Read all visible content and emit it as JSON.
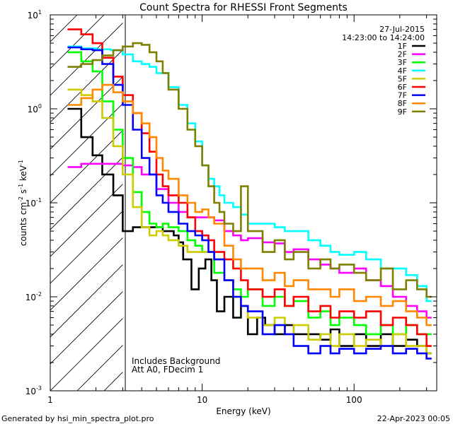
{
  "chart_data": {
    "type": "line",
    "title": "Count Spectra for RHESSI Front Segments",
    "xlabel": "Energy (keV)",
    "ylabel_base": "counts cm",
    "ylabel_exp1": "-2",
    "ylabel_mid": " s",
    "ylabel_exp2": "-1",
    "ylabel_end": " keV",
    "ylabel_exp3": "-1",
    "x_scale": "log",
    "y_scale": "log",
    "xlim": [
      1,
      350
    ],
    "ylim": [
      0.001,
      10
    ],
    "x_ticks": [
      {
        "value": 1,
        "label": "1"
      },
      {
        "value": 10,
        "label": "10"
      },
      {
        "value": 100,
        "label": "100"
      }
    ],
    "y_ticks": [
      {
        "value": 10,
        "base": "10",
        "exp": "1"
      },
      {
        "value": 1,
        "base": "10",
        "exp": "0"
      },
      {
        "value": 0.1,
        "base": "10",
        "exp": "-1"
      },
      {
        "value": 0.01,
        "base": "10",
        "exp": "-2"
      },
      {
        "value": 0.001,
        "base": "10",
        "exp": "-3"
      }
    ],
    "excluded_region": {
      "from": 1,
      "to": 3,
      "pattern": "hatched"
    },
    "date": "27-Jul-2015",
    "time_range": "14:23:00 to 14:24:00",
    "annotations": [
      "Includes Background",
      "Att A0, FDecim 1"
    ],
    "footer_left": "Generated by hsi_min_spectra_plot.pro",
    "footer_right": "22-Apr-2023 00:05",
    "series": [
      {
        "name": "1F",
        "color": "#000000",
        "x": [
          1.3,
          1.6,
          1.9,
          2.2,
          2.6,
          3.0,
          3.5,
          4.5,
          5.5,
          6.5,
          7.0,
          7.5,
          8.5,
          9.5,
          10.5,
          11.5,
          12.5,
          14,
          16,
          18,
          20,
          23,
          26,
          30,
          35,
          40,
          50,
          60,
          70,
          80,
          100,
          120,
          150,
          180,
          220,
          260,
          300
        ],
        "values": [
          1.0,
          0.5,
          0.32,
          0.2,
          0.12,
          0.05,
          0.055,
          0.055,
          0.05,
          0.045,
          0.038,
          0.025,
          0.012,
          0.02,
          0.025,
          0.015,
          0.007,
          0.01,
          0.006,
          0.008,
          0.004,
          0.006,
          0.005,
          0.004,
          0.005,
          0.004,
          0.004,
          0.0035,
          0.0045,
          0.003,
          0.004,
          0.003,
          0.004,
          0.003,
          0.0035,
          0.003,
          0.0025
        ]
      },
      {
        "name": "2F",
        "color": "#ff00ff",
        "x": [
          1.3,
          1.6,
          2.0,
          2.5,
          3.0,
          3.5,
          4.0,
          5.0,
          6.0,
          7.0,
          8.0,
          9.0,
          10,
          12,
          14,
          16,
          18,
          20,
          25,
          30,
          35,
          40,
          50,
          60,
          70,
          80,
          100,
          120,
          150,
          180,
          220,
          260,
          300
        ],
        "values": [
          0.24,
          0.26,
          0.26,
          0.26,
          0.25,
          0.24,
          0.2,
          0.14,
          0.1,
          0.08,
          0.07,
          0.07,
          0.07,
          0.065,
          0.05,
          0.045,
          0.04,
          0.042,
          0.038,
          0.037,
          0.03,
          0.032,
          0.025,
          0.022,
          0.02,
          0.018,
          0.02,
          0.015,
          0.013,
          0.01,
          0.008,
          0.007,
          0.006
        ]
      },
      {
        "name": "3F",
        "color": "#00ff00",
        "x": [
          1.3,
          1.6,
          1.9,
          2.2,
          2.6,
          3.0,
          3.5,
          4.0,
          4.5,
          5.0,
          5.5,
          6.0,
          7.0,
          8.0,
          9.0,
          10,
          12,
          14,
          16,
          18,
          20,
          25,
          30,
          35,
          40,
          50,
          60,
          70,
          80,
          100,
          120,
          150,
          180,
          220,
          260,
          300
        ],
        "values": [
          4.0,
          3.2,
          2.5,
          1.2,
          0.6,
          0.3,
          0.13,
          0.08,
          0.06,
          0.055,
          0.06,
          0.055,
          0.05,
          0.04,
          0.035,
          0.03,
          0.018,
          0.015,
          0.012,
          0.01,
          0.012,
          0.008,
          0.01,
          0.008,
          0.009,
          0.006,
          0.007,
          0.005,
          0.006,
          0.005,
          0.004,
          0.005,
          0.004,
          0.005,
          0.004,
          0.004
        ]
      },
      {
        "name": "4F",
        "color": "#00ffff",
        "x": [
          1.3,
          1.6,
          2.0,
          2.5,
          3.0,
          3.5,
          4.0,
          4.5,
          5.0,
          6.0,
          7.0,
          8.0,
          9.0,
          10,
          11,
          12,
          13,
          14,
          16,
          18,
          20,
          25,
          30,
          35,
          40,
          50,
          60,
          70,
          80,
          100,
          120,
          150,
          180,
          220,
          260,
          300
        ],
        "values": [
          4.6,
          4.4,
          4.3,
          4.2,
          3.8,
          3.2,
          3.0,
          2.8,
          2.4,
          1.7,
          1.1,
          0.7,
          0.45,
          0.25,
          0.18,
          0.15,
          0.12,
          0.1,
          0.09,
          0.075,
          0.06,
          0.06,
          0.055,
          0.05,
          0.05,
          0.04,
          0.035,
          0.03,
          0.028,
          0.03,
          0.025,
          0.02,
          0.02,
          0.017,
          0.013,
          0.009
        ]
      },
      {
        "name": "5F",
        "color": "#cccc00",
        "x": [
          1.3,
          1.6,
          1.9,
          2.2,
          2.6,
          3.0,
          3.5,
          4.0,
          4.5,
          5.0,
          5.5,
          6.0,
          7.0,
          8.0,
          9.0,
          10,
          12,
          14,
          16,
          18,
          20,
          25,
          30,
          35,
          40,
          50,
          60,
          70,
          80,
          100,
          120,
          150,
          180,
          220,
          260,
          300
        ],
        "values": [
          1.6,
          1.4,
          1.2,
          0.8,
          0.4,
          0.2,
          0.09,
          0.055,
          0.045,
          0.05,
          0.045,
          0.04,
          0.035,
          0.03,
          0.03,
          0.03,
          0.025,
          0.015,
          0.01,
          0.008,
          0.006,
          0.005,
          0.006,
          0.004,
          0.005,
          0.0035,
          0.004,
          0.003,
          0.004,
          0.003,
          0.0035,
          0.003,
          0.004,
          0.003,
          0.003,
          0.0025
        ]
      },
      {
        "name": "6F",
        "color": "#ff0000",
        "x": [
          1.3,
          1.6,
          1.9,
          2.2,
          2.6,
          3.0,
          3.5,
          4.0,
          4.5,
          5.0,
          5.5,
          6.0,
          7.0,
          8.0,
          9.0,
          10,
          11,
          12,
          14,
          16,
          18,
          20,
          25,
          30,
          35,
          40,
          50,
          60,
          70,
          80,
          100,
          120,
          150,
          180,
          220,
          260,
          300
        ],
        "values": [
          7.0,
          6.2,
          5.0,
          3.5,
          2.2,
          1.4,
          0.9,
          0.55,
          0.35,
          0.2,
          0.15,
          0.12,
          0.1,
          0.07,
          0.05,
          0.045,
          0.04,
          0.03,
          0.025,
          0.02,
          0.015,
          0.012,
          0.01,
          0.012,
          0.008,
          0.01,
          0.007,
          0.008,
          0.006,
          0.007,
          0.006,
          0.007,
          0.005,
          0.006,
          0.005,
          0.004,
          0.003
        ]
      },
      {
        "name": "7F",
        "color": "#0000ff",
        "x": [
          1.3,
          1.6,
          1.9,
          2.2,
          2.6,
          3.0,
          3.5,
          4.0,
          4.5,
          5.0,
          5.5,
          6.0,
          7.0,
          8.0,
          9.0,
          10,
          11,
          12,
          14,
          16,
          18,
          20,
          25,
          30,
          35,
          40,
          50,
          60,
          70,
          80,
          100,
          120,
          150,
          180,
          220,
          260,
          300
        ],
        "values": [
          4.5,
          4.3,
          4.2,
          3.0,
          1.8,
          1.1,
          0.6,
          0.3,
          0.2,
          0.12,
          0.1,
          0.08,
          0.06,
          0.05,
          0.045,
          0.04,
          0.03,
          0.025,
          0.015,
          0.01,
          0.008,
          0.007,
          0.004,
          0.005,
          0.004,
          0.003,
          0.0025,
          0.003,
          0.0025,
          0.0028,
          0.0025,
          0.0028,
          0.003,
          0.0025,
          0.0028,
          0.0025,
          0.0022
        ]
      },
      {
        "name": "8F",
        "color": "#ff8800",
        "x": [
          1.3,
          1.6,
          1.9,
          2.2,
          2.6,
          3.0,
          3.5,
          4.0,
          4.5,
          5.0,
          5.5,
          6.0,
          7.0,
          8.0,
          9.0,
          10,
          11,
          12,
          14,
          16,
          18,
          20,
          25,
          30,
          35,
          40,
          50,
          60,
          70,
          80,
          100,
          120,
          150,
          180,
          220,
          260,
          300
        ],
        "values": [
          1.1,
          1.3,
          1.6,
          1.8,
          1.5,
          1.2,
          0.9,
          0.7,
          0.5,
          0.3,
          0.22,
          0.18,
          0.12,
          0.1,
          0.08,
          0.085,
          0.07,
          0.06,
          0.035,
          0.025,
          0.02,
          0.02,
          0.015,
          0.018,
          0.013,
          0.015,
          0.012,
          0.012,
          0.01,
          0.012,
          0.009,
          0.01,
          0.008,
          0.009,
          0.007,
          0.006,
          0.005
        ]
      },
      {
        "name": "9F",
        "color": "#808000",
        "x": [
          1.3,
          1.6,
          1.9,
          2.2,
          2.6,
          3.0,
          3.5,
          4.0,
          4.5,
          5.0,
          5.5,
          6.0,
          7.0,
          8.0,
          9.0,
          10,
          11,
          12,
          13,
          14,
          16,
          18,
          20,
          25,
          30,
          35,
          40,
          50,
          60,
          70,
          80,
          100,
          120,
          150,
          180,
          220,
          260,
          300
        ],
        "values": [
          2.8,
          3.0,
          3.3,
          3.7,
          4.2,
          4.6,
          5.0,
          4.8,
          4.0,
          3.2,
          2.4,
          1.6,
          1.0,
          0.6,
          0.4,
          0.25,
          0.15,
          0.1,
          0.08,
          0.06,
          0.05,
          0.15,
          0.05,
          0.03,
          0.04,
          0.025,
          0.03,
          0.02,
          0.025,
          0.02,
          0.022,
          0.018,
          0.015,
          0.02,
          0.012,
          0.015,
          0.012,
          0.01
        ]
      }
    ]
  }
}
